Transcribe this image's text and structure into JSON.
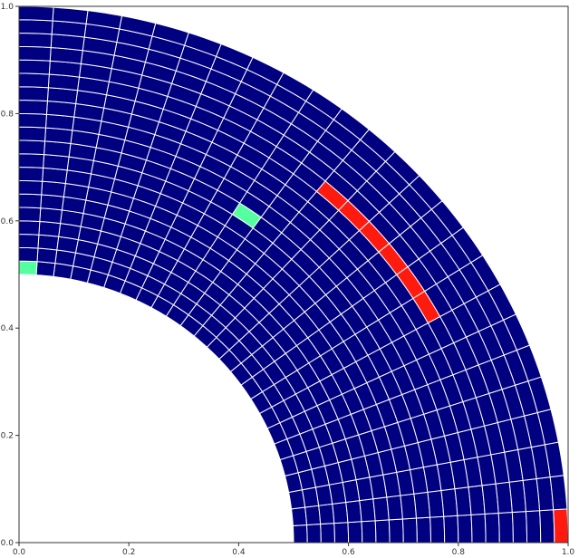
{
  "chart_data": {
    "type": "heatmap",
    "title": "",
    "xlabel": "",
    "ylabel": "",
    "xlim": [
      0,
      1
    ],
    "ylim": [
      0,
      1
    ],
    "x_ticks": [
      "0.0",
      "0.2",
      "0.4",
      "0.6",
      "0.8",
      "1.0"
    ],
    "y_ticks": [
      "0.0",
      "0.2",
      "0.4",
      "0.6",
      "0.8",
      "1.0"
    ],
    "grid": false,
    "mesh": {
      "shape": "quarter-annulus",
      "r_inner": 0.5,
      "r_outer": 1.0,
      "theta_start_deg": 0,
      "theta_end_deg": 90,
      "radial_cells": 20,
      "angular_cells": 25
    },
    "colors": {
      "base": "#000080",
      "highlight_green": "#55ffa0",
      "highlight_red": "#ff1a0f",
      "mesh_line": "#ffffff"
    },
    "highlighted_cells": [
      {
        "radial_index": 0,
        "angular_index": 24,
        "color": "highlight_green"
      },
      {
        "radial_index": 9,
        "angular_index": 15,
        "color": "highlight_green"
      },
      {
        "radial_index": 19,
        "angular_index": 0,
        "color": "highlight_red"
      },
      {
        "radial_index": 14,
        "angular_index": 8,
        "color": "highlight_red"
      },
      {
        "radial_index": 14,
        "angular_index": 9,
        "color": "highlight_red"
      },
      {
        "radial_index": 14,
        "angular_index": 10,
        "color": "highlight_red"
      },
      {
        "radial_index": 14,
        "angular_index": 11,
        "color": "highlight_red"
      },
      {
        "radial_index": 14,
        "angular_index": 12,
        "color": "highlight_red"
      },
      {
        "radial_index": 14,
        "angular_index": 13,
        "color": "highlight_red"
      }
    ]
  }
}
